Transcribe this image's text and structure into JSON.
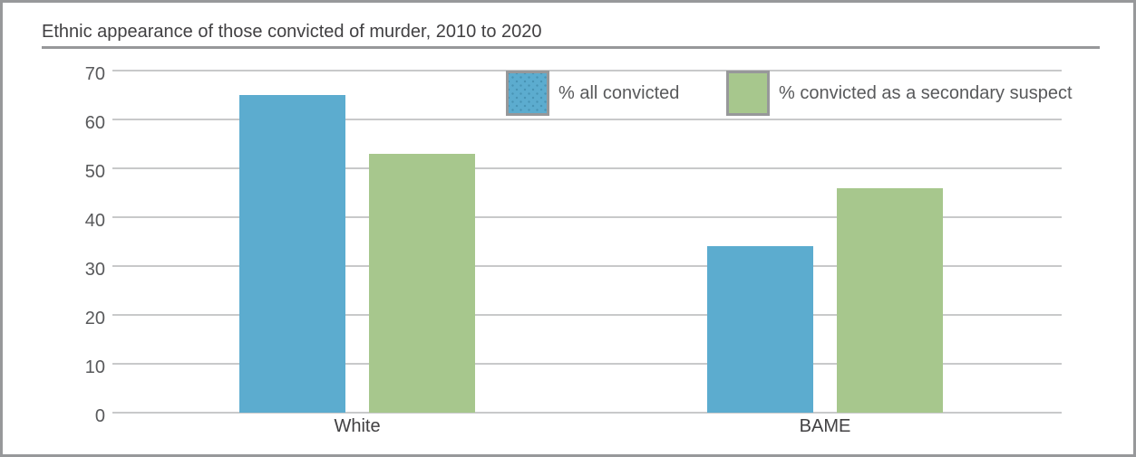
{
  "frame": {
    "border_color": "#97989a",
    "grid_color": "#c8c9ca"
  },
  "chart_data": {
    "type": "bar",
    "title": "Ethnic appearance of those convicted of murder, 2010 to 2020",
    "categories": [
      "White",
      "BAME"
    ],
    "series": [
      {
        "name": "% all convicted",
        "color": "#5caccf",
        "texture": "dots",
        "values": [
          65,
          34
        ]
      },
      {
        "name": "% convicted as a secondary suspect",
        "color": "#a7c78d",
        "texture": "solid",
        "values": [
          53,
          46
        ]
      }
    ],
    "xlabel": "",
    "ylabel": "",
    "ylim": [
      0,
      70
    ],
    "yticks": [
      0,
      10,
      20,
      30,
      40,
      50,
      60,
      70
    ],
    "grid": "horizontal",
    "legend_position": "top-inside"
  }
}
